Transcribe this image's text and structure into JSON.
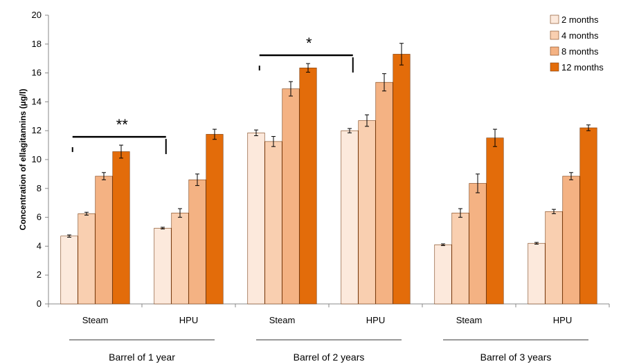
{
  "chart_data": {
    "type": "bar",
    "title": "",
    "xlabel": "",
    "ylabel": "Concentration of ellagitannins (µg/l)",
    "ylim": [
      0,
      20
    ],
    "yticks": [
      0,
      2,
      4,
      6,
      8,
      10,
      12,
      14,
      16,
      18,
      20
    ],
    "grid": false,
    "legend_position": "top-right",
    "categories": [
      "Steam",
      "HPU",
      "Steam",
      "HPU",
      "Steam",
      "HPU"
    ],
    "groups": [
      {
        "label": "Barrel of 1 year",
        "category_indices": [
          0,
          1
        ]
      },
      {
        "label": "Barrel of 2 years",
        "category_indices": [
          2,
          3
        ]
      },
      {
        "label": "Barrel of 3 years",
        "category_indices": [
          4,
          5
        ]
      }
    ],
    "series": [
      {
        "name": "2 months",
        "color": "#fce9dc",
        "values": [
          4.7,
          5.25,
          11.85,
          12.0,
          4.1,
          4.2
        ],
        "errors": [
          0.08,
          0.06,
          0.2,
          0.15,
          0.06,
          0.06
        ]
      },
      {
        "name": "4 months",
        "color": "#f9cfb0",
        "values": [
          6.25,
          6.3,
          11.25,
          12.7,
          6.3,
          6.4
        ],
        "errors": [
          0.1,
          0.3,
          0.35,
          0.4,
          0.3,
          0.15
        ]
      },
      {
        "name": "8 months",
        "color": "#f4b283",
        "values": [
          8.85,
          8.6,
          14.9,
          15.35,
          8.35,
          8.85
        ],
        "errors": [
          0.25,
          0.4,
          0.5,
          0.6,
          0.65,
          0.25
        ]
      },
      {
        "name": "12 months",
        "color": "#e36c0a",
        "values": [
          10.55,
          11.75,
          16.35,
          17.3,
          11.5,
          12.2
        ],
        "errors": [
          0.45,
          0.35,
          0.3,
          0.75,
          0.6,
          0.2
        ]
      }
    ],
    "annotations": [
      {
        "text": "**",
        "group_index": 0
      },
      {
        "text": "*",
        "group_index": 1
      }
    ]
  }
}
